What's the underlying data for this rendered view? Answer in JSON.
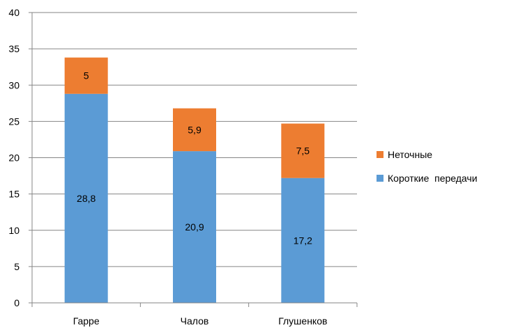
{
  "chart_data": {
    "type": "bar",
    "stacked": true,
    "categories": [
      "Гарре",
      "Чалов",
      "Глушенков"
    ],
    "series": [
      {
        "name": "Короткие  передачи",
        "values": [
          28.8,
          20.9,
          17.2
        ],
        "labels": [
          "28,8",
          "20,9",
          "17,2"
        ],
        "color": "#5b9bd5"
      },
      {
        "name": "Неточные",
        "values": [
          5,
          5.9,
          7.5
        ],
        "labels": [
          "5",
          "5,9",
          "7,5"
        ],
        "color": "#ed7d31"
      }
    ],
    "title": "",
    "xlabel": "",
    "ylabel": "",
    "ylim": [
      0,
      40
    ],
    "yticks": [
      0,
      5,
      10,
      15,
      20,
      25,
      30,
      35,
      40
    ],
    "grid": true,
    "legend": {
      "position": "right",
      "order": [
        "Неточные",
        "Короткие  передачи"
      ]
    }
  }
}
